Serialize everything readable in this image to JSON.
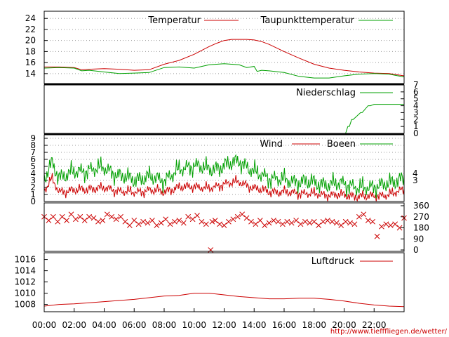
{
  "source_url": "http://www.tiefffliegen.de/wetter/",
  "x_ticks": [
    "00:00",
    "02:00",
    "04:00",
    "06:00",
    "08:00",
    "10:00",
    "12:00",
    "14:00",
    "16:00",
    "18:00",
    "20:00",
    "22:00"
  ],
  "colors": {
    "red": "#cc0000",
    "green": "#00a000",
    "grid": "#9a9a9a"
  },
  "chart_data": [
    {
      "type": "line",
      "yticks": [
        14,
        16,
        18,
        20,
        22,
        24
      ],
      "ylim": [
        12.2,
        25.3
      ],
      "grid": true,
      "legend": "top-right",
      "series": [
        {
          "name": "Temperatur",
          "color": "#cc0000",
          "x": [
            0,
            1,
            2,
            2.5,
            3,
            4,
            5,
            6,
            7,
            8,
            9,
            10,
            10.5,
            11,
            11.5,
            12,
            12.5,
            13,
            13.5,
            14,
            14.5,
            15,
            16,
            17,
            18,
            19,
            20,
            21,
            22,
            23,
            24
          ],
          "y": [
            15.2,
            15.2,
            15.1,
            14.7,
            14.8,
            14.9,
            14.8,
            14.6,
            14.7,
            15.7,
            16.4,
            17.5,
            18.2,
            18.9,
            19.5,
            20.0,
            20.2,
            20.2,
            20.2,
            20.1,
            19.8,
            19.3,
            18.0,
            16.8,
            15.7,
            15.0,
            14.6,
            14.3,
            14.1,
            14.0,
            13.6
          ]
        },
        {
          "name": "Taupunkttemperatur",
          "color": "#00a000",
          "x": [
            0,
            1,
            2,
            2.5,
            3,
            4,
            5,
            6,
            7,
            8,
            9,
            10,
            11,
            12,
            13,
            13.5,
            14,
            14.2,
            14.5,
            15,
            16,
            17,
            18,
            19,
            20,
            21,
            22,
            23,
            24
          ],
          "y": [
            15.0,
            15.1,
            15.0,
            14.5,
            14.6,
            14.3,
            14.0,
            14.1,
            14.2,
            15.1,
            15.2,
            15.0,
            15.6,
            15.8,
            15.6,
            15.1,
            15.3,
            14.4,
            14.6,
            14.5,
            14.2,
            13.5,
            13.2,
            13.2,
            13.6,
            13.9,
            14.0,
            13.9,
            13.4
          ]
        }
      ]
    },
    {
      "type": "line",
      "yticks": [
        0,
        1,
        2,
        3,
        4,
        5,
        6,
        7
      ],
      "ylim": [
        0,
        7
      ],
      "grid": false,
      "legend": "top-right",
      "series": [
        {
          "name": "Niederschlag",
          "color": "#00a000",
          "x": [
            0,
            20.1,
            20.25,
            20.35,
            20.5,
            20.6,
            21.1,
            21.2,
            21.6,
            21.75,
            22.0,
            24
          ],
          "y": [
            0,
            0,
            1,
            1,
            2,
            2,
            3,
            3,
            4,
            4,
            4.2,
            4.2
          ]
        }
      ]
    },
    {
      "type": "line",
      "yticks_left": [
        0,
        1,
        2,
        3,
        4,
        5,
        6,
        7,
        8,
        9
      ],
      "yticks_right": [
        3,
        4
      ],
      "ylim": [
        0,
        9.5
      ],
      "grid": true,
      "legend": "top-right",
      "series": [
        {
          "name": "Wind",
          "color": "#cc0000",
          "x": [
            0,
            0.5,
            1,
            2,
            3,
            4,
            5,
            6,
            7,
            8,
            9,
            10,
            11,
            12,
            13,
            14,
            15,
            16,
            17,
            18,
            19,
            20,
            21,
            22,
            23,
            24
          ],
          "y": [
            1.5,
            3.2,
            1.4,
            1.6,
            1.8,
            1.9,
            1.5,
            1.3,
            1.6,
            1.4,
            2.0,
            2.2,
            1.8,
            2.5,
            2.8,
            1.9,
            1.4,
            1.3,
            1.2,
            1.1,
            0.9,
            0.9,
            0.7,
            0.8,
            0.9,
            1.8
          ]
        },
        {
          "name": "Boeen",
          "color": "#00a000",
          "x": [
            0,
            0.5,
            1,
            2,
            3,
            4,
            5,
            6,
            7,
            8,
            9,
            10,
            11,
            12,
            13,
            14,
            15,
            16,
            17,
            18,
            19,
            20,
            21,
            22,
            23,
            24
          ],
          "y": [
            3.0,
            5.5,
            3.5,
            4.2,
            4.5,
            4.8,
            3.6,
            3.2,
            3.5,
            3.0,
            4.5,
            5.2,
            4.6,
            5.0,
            5.8,
            4.2,
            3.4,
            3.0,
            2.8,
            2.7,
            2.4,
            2.6,
            1.8,
            2.2,
            2.5,
            3.5
          ]
        }
      ]
    },
    {
      "type": "scatter",
      "yticks": [
        0,
        90,
        180,
        270,
        360
      ],
      "ylim": [
        0,
        360
      ],
      "grid": false,
      "series": [
        {
          "name": "",
          "color": "#cc0000",
          "x": [
            0,
            0.3,
            0.6,
            0.9,
            1.2,
            1.5,
            1.8,
            2.1,
            2.4,
            2.7,
            3.0,
            3.3,
            3.6,
            3.9,
            4.2,
            4.5,
            4.8,
            5.1,
            5.4,
            5.7,
            6.0,
            6.3,
            6.6,
            6.9,
            7.2,
            7.5,
            7.8,
            8.1,
            8.4,
            8.7,
            9.0,
            9.3,
            9.6,
            9.9,
            10.2,
            10.5,
            10.8,
            11.1,
            11.2,
            11.4,
            11.7,
            12.0,
            12.3,
            12.6,
            12.9,
            13.2,
            13.5,
            13.8,
            14.1,
            14.4,
            14.7,
            15.0,
            15.3,
            15.6,
            15.9,
            16.2,
            16.5,
            16.8,
            17.1,
            17.4,
            17.7,
            18.0,
            18.3,
            18.6,
            18.9,
            19.2,
            19.5,
            19.8,
            20.1,
            20.4,
            20.7,
            21.0,
            21.3,
            21.6,
            21.9,
            22.2,
            22.5,
            22.8,
            23.1,
            23.4,
            23.7,
            24.0
          ],
          "y": [
            270,
            240,
            270,
            230,
            270,
            240,
            290,
            250,
            270,
            240,
            270,
            260,
            230,
            240,
            290,
            270,
            250,
            270,
            230,
            200,
            240,
            210,
            230,
            220,
            240,
            200,
            220,
            250,
            210,
            230,
            240,
            220,
            270,
            250,
            280,
            230,
            210,
            0,
            230,
            240,
            210,
            200,
            230,
            250,
            270,
            290,
            260,
            230,
            210,
            240,
            200,
            220,
            240,
            230,
            210,
            230,
            220,
            240,
            210,
            230,
            220,
            230,
            200,
            230,
            240,
            230,
            220,
            200,
            230,
            220,
            210,
            270,
            290,
            240,
            230,
            110,
            190,
            210,
            200,
            210,
            180,
            260
          ]
        }
      ]
    },
    {
      "type": "line",
      "yticks": [
        1008,
        1010,
        1012,
        1014,
        1016
      ],
      "ylim": [
        1006.7,
        1017.2
      ],
      "grid": false,
      "legend": "top-right",
      "series": [
        {
          "name": "Luftdruck",
          "color": "#cc0000",
          "x": [
            0,
            1,
            2,
            3,
            4,
            5,
            6,
            7,
            8,
            9,
            10,
            11,
            12,
            13,
            14,
            15,
            16,
            17,
            18,
            19,
            20,
            21,
            22,
            23,
            24
          ],
          "y": [
            1007.7,
            1008.0,
            1008.1,
            1008.3,
            1008.5,
            1008.7,
            1008.9,
            1009.2,
            1009.5,
            1009.6,
            1010.0,
            1010.0,
            1009.7,
            1009.4,
            1009.2,
            1009.0,
            1009.0,
            1009.1,
            1009.1,
            1008.9,
            1008.6,
            1008.2,
            1007.9,
            1007.7,
            1007.6
          ]
        }
      ]
    }
  ]
}
